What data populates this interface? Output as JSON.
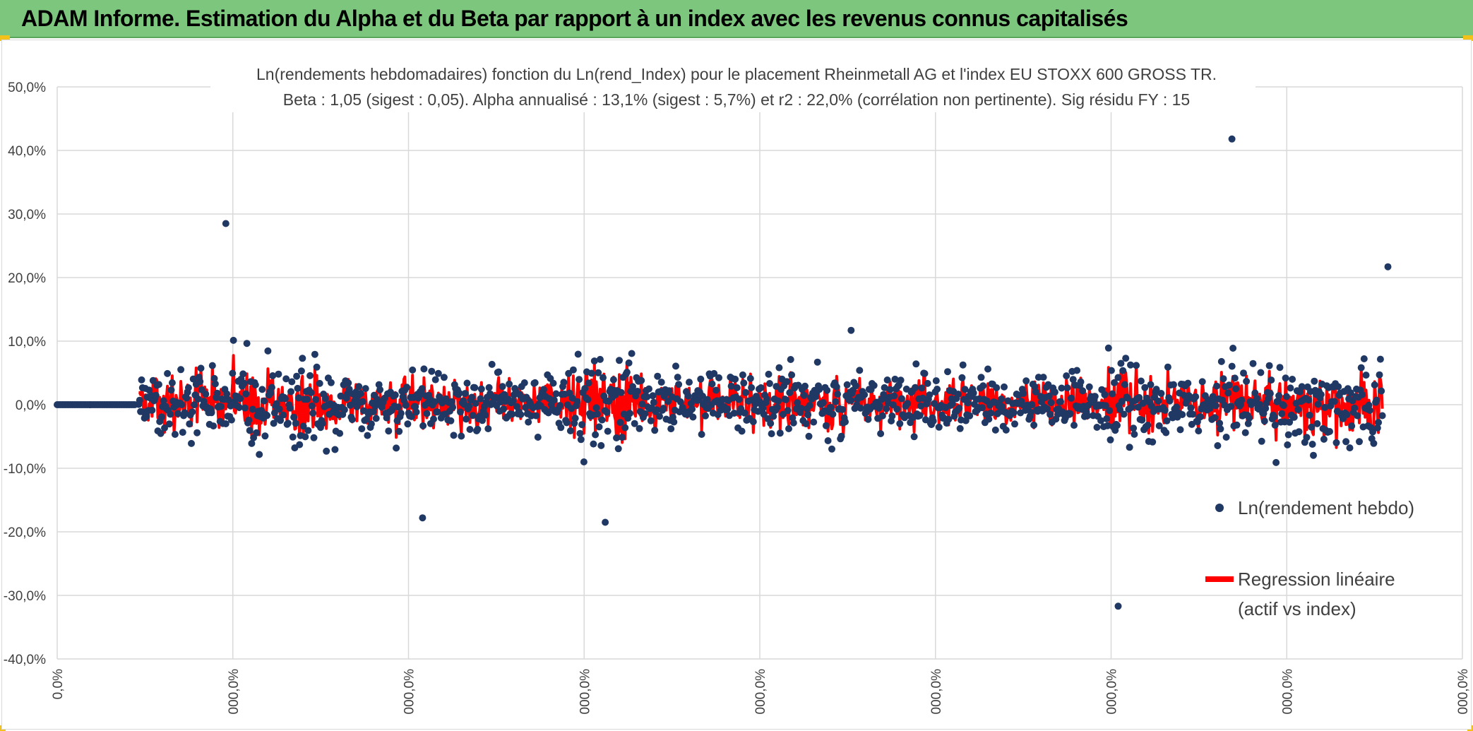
{
  "header": {
    "title": "ADAM Informe. Estimation du Alpha et du Beta par rapport à un index avec les revenus connus capitalisés",
    "color": "#7dc67d"
  },
  "chart_data": {
    "type": "scatter",
    "title": "Ln(rendements hebdomadaires) fonction du Ln(rend_Index) pour le placement Rheinmetall AG et l'index EU STOXX 600 GROSS TR.",
    "subtitle": "Beta : 1,05 (sigest : 0,05). Alpha annualisé : 13,1% (sigest : 5,7%) et r2 : 22,0% (corrélation non pertinente). Sig résidu FY : 15",
    "xlabel": "",
    "ylabel": "",
    "ylim": [
      -40,
      50
    ],
    "y_unit": "%",
    "y_ticks": [
      "50,0%",
      "40,0%",
      "30,0%",
      "20,0%",
      "10,0%",
      "0,0%",
      "-10,0%",
      "-20,0%",
      "-30,0%",
      "-40,0%"
    ],
    "x_ticks": [
      "0,0%",
      "000,0%",
      "000,0%",
      "000,0%",
      "000,0%",
      "000,0%",
      "000,0%",
      "000,0%",
      "000,0%"
    ],
    "grid": true,
    "legend_position": "right",
    "series": [
      {
        "name": "Ln(rendement hebdo)",
        "kind": "scatter",
        "color": "#203864",
        "summary": "weekly log returns, mostly between -5% and +5%, zero before first observations",
        "notable_points": [
          {
            "x_fraction": 0.12,
            "y": 28.5
          },
          {
            "x_fraction": 0.26,
            "y": -17.8
          },
          {
            "x_fraction": 0.39,
            "y": -18.5
          },
          {
            "x_fraction": 0.565,
            "y": 11.7
          },
          {
            "x_fraction": 0.755,
            "y": -31.7
          },
          {
            "x_fraction": 0.836,
            "y": 41.8
          },
          {
            "x_fraction": 0.947,
            "y": 21.7
          }
        ]
      },
      {
        "name": "Regression linéaire (actif vs index)",
        "legend_lines": [
          "Regression linéaire",
          "(actif vs index)"
        ],
        "kind": "line",
        "color": "#ff0000",
        "summary": "fitted values beta*index + alpha, mostly between -5% and +5%"
      }
    ]
  }
}
